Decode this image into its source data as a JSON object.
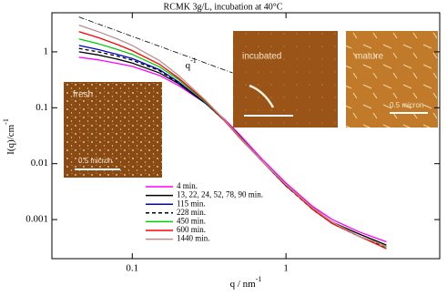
{
  "chart_data": {
    "type": "line",
    "title": "RCMK 3g/L, incubation at 40°C",
    "x_label": "q / nm",
    "x_label_sup": "-1",
    "y_label": "I(q)/cm",
    "y_label_sup": "-1",
    "xscale": "log",
    "yscale": "log",
    "xlim": [
      0.03,
      10
    ],
    "ylim": [
      0.0002,
      5
    ],
    "xticks": [
      0.1,
      1
    ],
    "yticks": [
      0.001,
      0.01,
      0.1,
      1
    ],
    "x": [
      0.045,
      0.06,
      0.08,
      0.1,
      0.15,
      0.2,
      0.3,
      0.4,
      0.5,
      0.7,
      1,
      1.5,
      2,
      3,
      4,
      4.5
    ],
    "series": [
      {
        "name": "4 min.",
        "color": "#ff00ff",
        "dashed": false,
        "values": [
          0.8,
          0.72,
          0.62,
          0.55,
          0.38,
          0.25,
          0.12,
          0.062,
          0.033,
          0.012,
          0.0045,
          0.0017,
          0.001,
          0.0006,
          0.00045,
          0.0004
        ]
      },
      {
        "name": "13, 22, 24, 52, 78, 90 min.",
        "color": "#000000",
        "dashed": false,
        "values": [
          1.0,
          0.88,
          0.74,
          0.63,
          0.42,
          0.27,
          0.12,
          0.06,
          0.031,
          0.011,
          0.004,
          0.0016,
          0.0009,
          0.00055,
          0.0004,
          0.00035
        ]
      },
      {
        "name": "115 min.",
        "color": "#0000cc",
        "dashed": false,
        "values": [
          1.3,
          1.1,
          0.9,
          0.76,
          0.48,
          0.29,
          0.12,
          0.058,
          0.03,
          0.011,
          0.0042,
          0.0016,
          0.0009,
          0.0005,
          0.00038,
          0.00033
        ]
      },
      {
        "name": "228 min.",
        "color": "#000000",
        "dashed": true,
        "values": [
          1.15,
          1.0,
          0.84,
          0.71,
          0.46,
          0.28,
          0.12,
          0.058,
          0.03,
          0.011,
          0.004,
          0.0015,
          0.00085,
          0.0005,
          0.00036,
          0.0003
        ]
      },
      {
        "name": "450 min.",
        "color": "#00cc00",
        "dashed": false,
        "values": [
          1.7,
          1.4,
          1.1,
          0.9,
          0.54,
          0.32,
          0.125,
          0.058,
          0.03,
          0.011,
          0.0042,
          0.0016,
          0.0009,
          0.0005,
          0.00038,
          0.00032
        ]
      },
      {
        "name": "600 min.",
        "color": "#ff0000",
        "dashed": false,
        "values": [
          2.3,
          1.8,
          1.35,
          1.05,
          0.6,
          0.34,
          0.13,
          0.058,
          0.029,
          0.011,
          0.0041,
          0.0015,
          0.00085,
          0.0005,
          0.00035,
          0.0003
        ]
      },
      {
        "name": "1440 min.",
        "color": "#bc8f8f",
        "dashed": false,
        "values": [
          3.0,
          2.3,
          1.7,
          1.3,
          0.7,
          0.38,
          0.135,
          0.06,
          0.03,
          0.011,
          0.0042,
          0.0016,
          0.0009,
          0.0005,
          0.00038,
          0.00033
        ]
      }
    ],
    "reference_line": {
      "label": "q",
      "label_sup": "-1",
      "x": [
        0.045,
        0.45
      ],
      "y": [
        4.2,
        0.42
      ]
    },
    "insets": [
      {
        "label": "fresh",
        "scale": "0.5 micron"
      },
      {
        "label": "incubated"
      },
      {
        "label": "mature",
        "scale": "0.5 micron"
      }
    ]
  }
}
